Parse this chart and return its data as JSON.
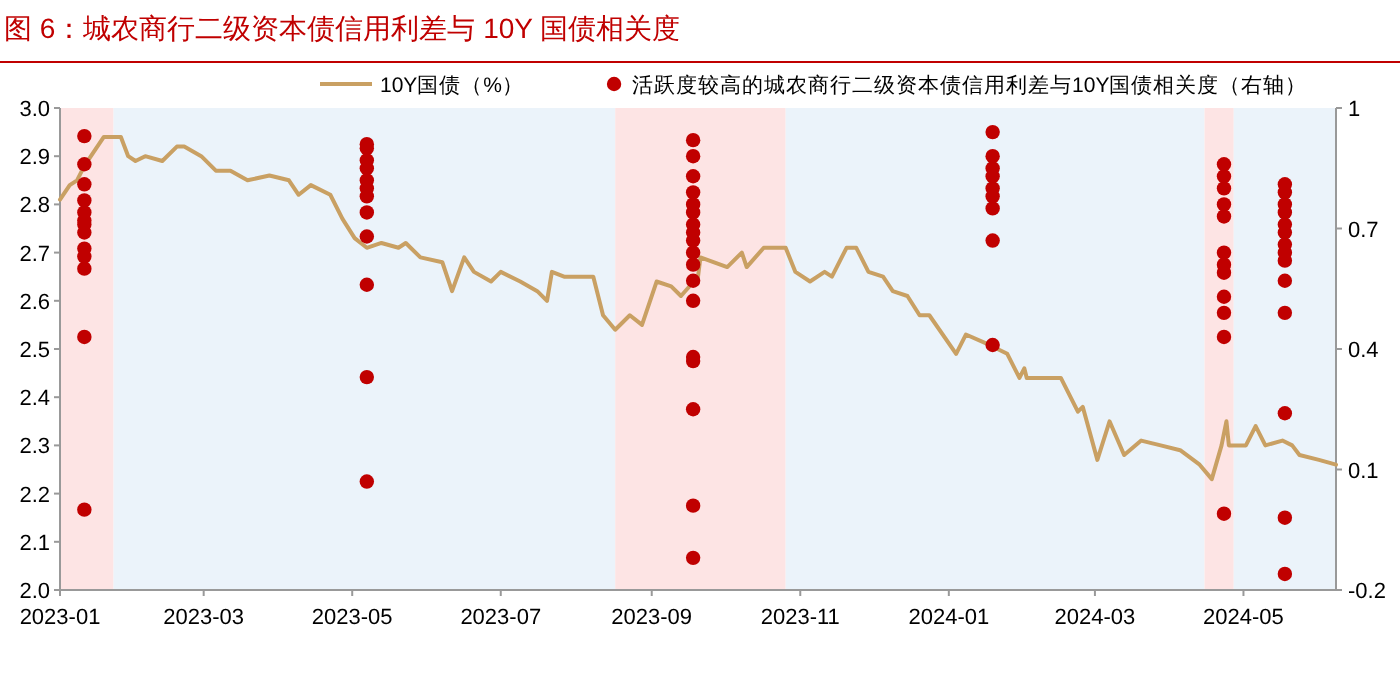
{
  "chart_data": {
    "type": "line",
    "title": "图 6：城农商行二级资本债信用利差与 10Y 国债相关度",
    "legend": "top",
    "grid": false,
    "xlim": [
      "2023-01-01",
      "2024-06-08"
    ],
    "xticks": [
      "2023-01",
      "2023-03",
      "2023-05",
      "2023-07",
      "2023-09",
      "2023-11",
      "2024-01",
      "2024-03",
      "2024-05"
    ],
    "ylim": [
      2.0,
      3.0
    ],
    "yticks": [
      {
        "value": 2.0,
        "label": "2.0"
      },
      {
        "value": 2.1,
        "label": "2.1"
      },
      {
        "value": 2.2,
        "label": "2.2"
      },
      {
        "value": 2.3,
        "label": "2.3"
      },
      {
        "value": 2.4,
        "label": "2.4"
      },
      {
        "value": 2.5,
        "label": "2.5"
      },
      {
        "value": 2.6,
        "label": "2.6"
      },
      {
        "value": 2.7,
        "label": "2.7"
      },
      {
        "value": 2.8,
        "label": "2.8"
      },
      {
        "value": 2.9,
        "label": "2.9"
      },
      {
        "value": 3.0,
        "label": "3.0"
      }
    ],
    "y2lim": [
      -0.2,
      1
    ],
    "y2ticks": [
      -0.2,
      0.1,
      0.4,
      0.7,
      1
    ],
    "bands": [
      {
        "axis": "x",
        "from": "2023-01-01",
        "to": "2023-01-23",
        "color": "#fde4e4"
      },
      {
        "axis": "x",
        "from": "2023-01-23",
        "to": "2023-08-17",
        "color": "#ebf3fa"
      },
      {
        "axis": "x",
        "from": "2023-08-17",
        "to": "2023-10-26",
        "color": "#fde4e4"
      },
      {
        "axis": "x",
        "from": "2023-10-26",
        "to": "2024-04-15",
        "color": "#ebf3fa"
      },
      {
        "axis": "x",
        "from": "2024-04-15",
        "to": "2024-04-27",
        "color": "#fde4e4"
      },
      {
        "axis": "x",
        "from": "2024-04-27",
        "to": "2024-06-08",
        "color": "#ebf3fa"
      }
    ],
    "series": [
      {
        "name": "10Y国债（%）",
        "type": "line",
        "color": "#c9a063",
        "x": [
          "2023-01-01",
          "2023-01-05",
          "2023-01-08",
          "2023-01-11",
          "2023-01-15",
          "2023-01-19",
          "2023-01-26",
          "2023-01-29",
          "2023-02-01",
          "2023-02-05",
          "2023-02-12",
          "2023-02-18",
          "2023-02-21",
          "2023-02-28",
          "2023-03-06",
          "2023-03-12",
          "2023-03-19",
          "2023-03-28",
          "2023-04-05",
          "2023-04-09",
          "2023-04-14",
          "2023-04-22",
          "2023-04-27",
          "2023-05-02",
          "2023-05-07",
          "2023-05-13",
          "2023-05-20",
          "2023-05-23",
          "2023-05-29",
          "2023-06-07",
          "2023-06-11",
          "2023-06-16",
          "2023-06-20",
          "2023-06-27",
          "2023-07-01",
          "2023-07-09",
          "2023-07-16",
          "2023-07-20",
          "2023-07-22",
          "2023-07-27",
          "2023-08-08",
          "2023-08-12",
          "2023-08-17",
          "2023-08-23",
          "2023-08-28",
          "2023-09-03",
          "2023-09-09",
          "2023-09-13",
          "2023-09-20",
          "2023-09-21",
          "2023-10-02",
          "2023-10-08",
          "2023-10-10",
          "2023-10-17",
          "2023-10-26",
          "2023-10-30",
          "2023-11-05",
          "2023-11-11",
          "2023-11-14",
          "2023-11-20",
          "2023-11-24",
          "2023-11-29",
          "2023-12-05",
          "2023-12-09",
          "2023-12-15",
          "2023-12-20",
          "2023-12-24",
          "2024-01-04",
          "2024-01-08",
          "2024-01-17",
          "2024-01-25",
          "2024-01-30",
          "2024-02-01",
          "2024-02-02",
          "2024-02-06",
          "2024-02-16",
          "2024-02-23",
          "2024-02-25",
          "2024-03-02",
          "2024-03-07",
          "2024-03-13",
          "2024-03-20",
          "2024-03-28",
          "2024-04-05",
          "2024-04-13",
          "2024-04-18",
          "2024-04-22",
          "2024-04-24",
          "2024-04-25",
          "2024-05-02",
          "2024-05-06",
          "2024-05-10",
          "2024-05-17",
          "2024-05-21",
          "2024-05-24",
          "2024-06-01",
          "2024-06-08"
        ],
        "values": [
          2.81,
          2.84,
          2.85,
          2.88,
          2.91,
          2.94,
          2.94,
          2.9,
          2.89,
          2.9,
          2.89,
          2.92,
          2.92,
          2.9,
          2.87,
          2.87,
          2.85,
          2.86,
          2.85,
          2.82,
          2.84,
          2.82,
          2.77,
          2.73,
          2.71,
          2.72,
          2.71,
          2.72,
          2.69,
          2.68,
          2.62,
          2.69,
          2.66,
          2.64,
          2.66,
          2.64,
          2.62,
          2.6,
          2.66,
          2.65,
          2.65,
          2.57,
          2.54,
          2.57,
          2.55,
          2.64,
          2.63,
          2.61,
          2.65,
          2.69,
          2.67,
          2.7,
          2.67,
          2.71,
          2.71,
          2.66,
          2.64,
          2.66,
          2.65,
          2.71,
          2.71,
          2.66,
          2.65,
          2.62,
          2.61,
          2.57,
          2.57,
          2.49,
          2.53,
          2.51,
          2.49,
          2.44,
          2.46,
          2.44,
          2.44,
          2.44,
          2.37,
          2.38,
          2.27,
          2.35,
          2.28,
          2.31,
          2.3,
          2.29,
          2.26,
          2.23,
          2.3,
          2.35,
          2.3,
          2.3,
          2.34,
          2.3,
          2.31,
          2.3,
          2.28,
          2.27,
          2.26
        ]
      },
      {
        "name": "活跃度较高的城农商行二级资本债信用利差与10Y国债相关度（右轴）",
        "type": "scatter",
        "axis": "y2",
        "color": "#c00000",
        "marker": "circle",
        "x": [
          "2023-01-11",
          "2023-01-11",
          "2023-01-11",
          "2023-01-11",
          "2023-01-11",
          "2023-01-11",
          "2023-01-11",
          "2023-01-11",
          "2023-01-11",
          "2023-01-11",
          "2023-01-11",
          "2023-01-11",
          "2023-01-11",
          "2023-05-07",
          "2023-05-07",
          "2023-05-07",
          "2023-05-07",
          "2023-05-07",
          "2023-05-07",
          "2023-05-07",
          "2023-05-07",
          "2023-05-07",
          "2023-05-07",
          "2023-05-07",
          "2023-05-07",
          "2023-09-18",
          "2023-09-18",
          "2023-09-18",
          "2023-09-18",
          "2023-09-18",
          "2023-09-18",
          "2023-09-18",
          "2023-09-18",
          "2023-09-18",
          "2023-09-18",
          "2023-09-18",
          "2023-09-18",
          "2023-09-18",
          "2023-09-18",
          "2023-09-18",
          "2023-09-18",
          "2023-09-18",
          "2023-09-18",
          "2024-01-19",
          "2024-01-19",
          "2024-01-19",
          "2024-01-19",
          "2024-01-19",
          "2024-01-19",
          "2024-01-19",
          "2024-01-19",
          "2024-01-19",
          "2024-04-23",
          "2024-04-23",
          "2024-04-23",
          "2024-04-23",
          "2024-04-23",
          "2024-04-23",
          "2024-04-23",
          "2024-04-23",
          "2024-04-23",
          "2024-04-23",
          "2024-04-23",
          "2024-04-23",
          "2024-05-18",
          "2024-05-18",
          "2024-05-18",
          "2024-05-18",
          "2024-05-18",
          "2024-05-18",
          "2024-05-18",
          "2024-05-18",
          "2024-05-18",
          "2024-05-18",
          "2024-05-18",
          "2024-05-18",
          "2024-05-18",
          "2024-05-18"
        ],
        "values": [
          0.93,
          0.86,
          0.81,
          0.77,
          0.74,
          0.72,
          0.71,
          0.69,
          0.65,
          0.63,
          0.6,
          0.43,
          0.0,
          0.91,
          0.9,
          0.87,
          0.85,
          0.82,
          0.8,
          0.78,
          0.74,
          0.68,
          0.56,
          0.33,
          0.07,
          0.92,
          0.88,
          0.83,
          0.79,
          0.76,
          0.74,
          0.71,
          0.69,
          0.67,
          0.64,
          0.61,
          0.57,
          0.52,
          0.38,
          0.37,
          0.25,
          0.01,
          -0.12,
          0.94,
          0.88,
          0.85,
          0.83,
          0.8,
          0.78,
          0.75,
          0.67,
          0.41,
          0.86,
          0.83,
          0.8,
          0.76,
          0.73,
          0.64,
          0.61,
          0.59,
          0.53,
          0.49,
          0.43,
          -0.01,
          0.81,
          0.79,
          0.76,
          0.74,
          0.71,
          0.69,
          0.66,
          0.64,
          0.62,
          0.57,
          0.49,
          0.24,
          -0.02,
          -0.16
        ]
      }
    ]
  }
}
